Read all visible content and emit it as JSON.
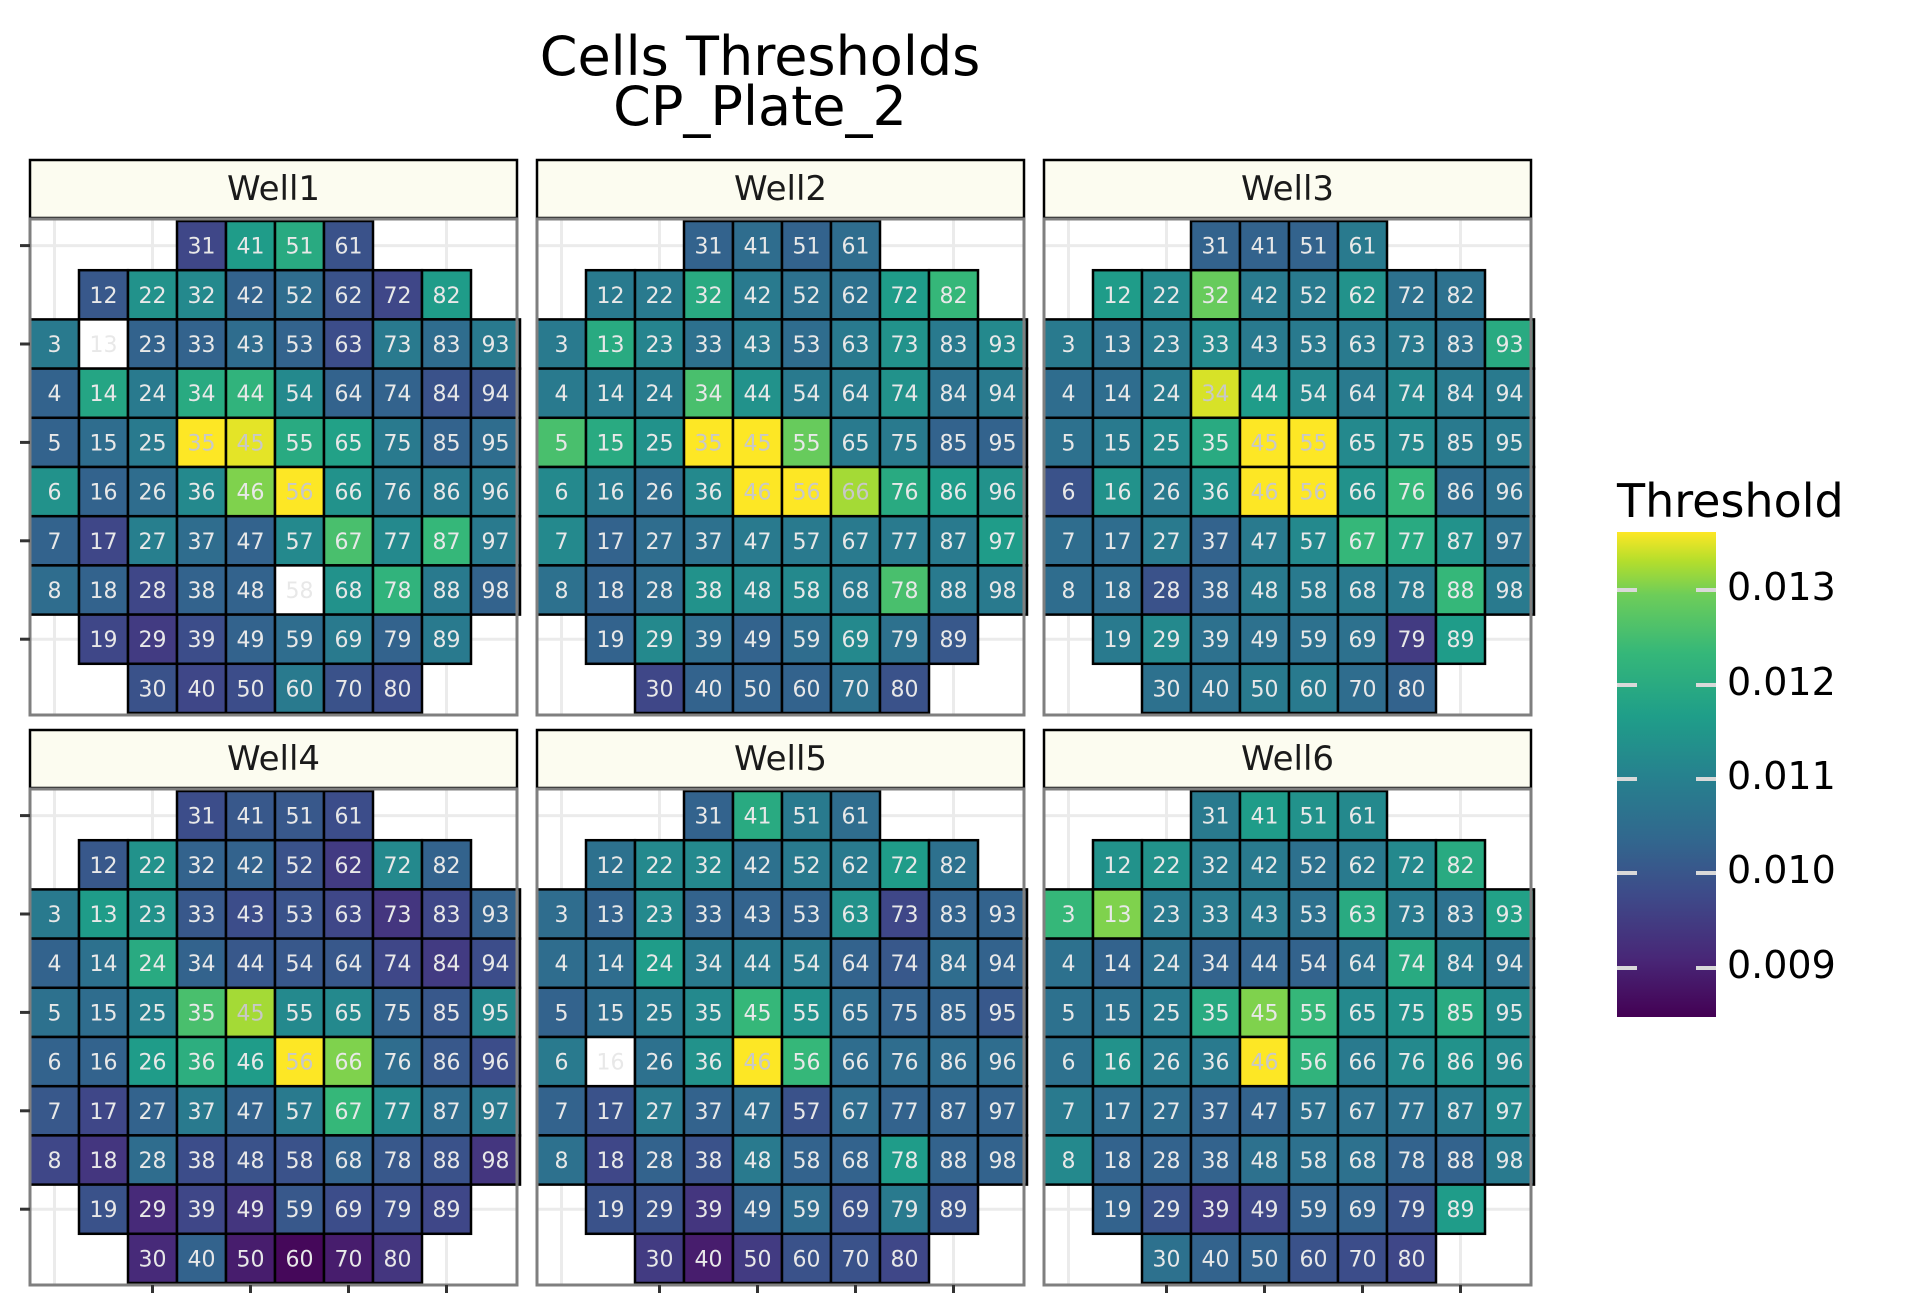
{
  "title_line1": "Cells Thresholds",
  "title_line2": "CP_Plate_2",
  "legend": {
    "title": "Threshold",
    "labels": [
      "0.013",
      "0.012",
      "0.011",
      "0.010",
      "0.009"
    ],
    "range": [
      0.0084,
      0.0135
    ]
  },
  "colors": {
    "strip_bg": "#fcfcf0",
    "missing": "#ffffff",
    "cell_border": "#000000",
    "grid": "#ebebeb",
    "panel_border": "#7f7f7f"
  },
  "chart_data": {
    "type": "heatmap",
    "title": "Cells Thresholds\nCP_Plate_2",
    "colorscale": "viridis",
    "legend_title": "Threshold",
    "legend_ticks": [
      0.009,
      0.01,
      0.011,
      0.012,
      0.013
    ],
    "row_layout": [
      [
        31,
        41,
        51,
        61
      ],
      [
        12,
        22,
        32,
        42,
        52,
        62,
        72,
        82
      ],
      [
        3,
        13,
        23,
        33,
        43,
        53,
        63,
        73,
        83,
        93
      ],
      [
        4,
        14,
        24,
        34,
        44,
        54,
        64,
        74,
        84,
        94
      ],
      [
        5,
        15,
        25,
        35,
        45,
        55,
        65,
        75,
        85,
        95
      ],
      [
        6,
        16,
        26,
        36,
        46,
        56,
        66,
        76,
        86,
        96
      ],
      [
        7,
        17,
        27,
        37,
        47,
        57,
        67,
        77,
        87,
        97
      ],
      [
        8,
        18,
        28,
        38,
        48,
        58,
        68,
        78,
        88,
        98
      ],
      [
        19,
        29,
        39,
        49,
        59,
        69,
        79,
        89
      ],
      [
        30,
        40,
        50,
        60,
        70,
        80
      ]
    ],
    "panels": [
      {
        "name": "Well1",
        "values": [
          [
            0.0095,
            0.0112,
            0.0115,
            0.0097
          ],
          [
            0.0098,
            0.011,
            0.0108,
            0.01,
            0.0102,
            0.0097,
            0.0095,
            0.0112
          ],
          [
            0.0105,
            null,
            0.01,
            0.01,
            0.0102,
            0.01,
            0.0096,
            0.0105,
            0.0102,
            0.0105
          ],
          [
            0.01,
            0.0114,
            0.0105,
            0.0115,
            0.0117,
            0.0108,
            0.01,
            0.01,
            0.0097,
            0.0097
          ],
          [
            0.01,
            0.0102,
            0.0105,
            0.0135,
            0.0133,
            0.0115,
            0.0113,
            0.0105,
            0.01,
            0.0102
          ],
          [
            0.011,
            0.01,
            0.0102,
            0.0108,
            0.0125,
            0.0135,
            0.011,
            0.0105,
            0.0105,
            0.0105
          ],
          [
            0.01,
            0.0095,
            0.0106,
            0.0102,
            0.01,
            0.0108,
            0.012,
            0.0108,
            0.0118,
            0.0105
          ],
          [
            0.0102,
            0.01,
            0.0095,
            0.01,
            0.01,
            null,
            0.011,
            0.0117,
            0.0105,
            0.01
          ],
          [
            0.0095,
            0.0093,
            0.0096,
            0.01,
            0.0102,
            0.0105,
            0.01,
            0.0105
          ],
          [
            0.0097,
            0.0095,
            0.0096,
            0.0105,
            0.0097,
            0.0096
          ]
        ]
      },
      {
        "name": "Well2",
        "values": [
          [
            0.01,
            0.0102,
            0.01,
            0.0102
          ],
          [
            0.0105,
            0.0105,
            0.0115,
            0.0105,
            0.0103,
            0.0103,
            0.0112,
            0.0118
          ],
          [
            0.0105,
            0.0115,
            0.0107,
            0.0103,
            0.0105,
            0.0102,
            0.0105,
            0.011,
            0.0105,
            0.0108
          ],
          [
            0.0105,
            0.0105,
            0.0105,
            0.012,
            0.011,
            0.0105,
            0.0105,
            0.011,
            0.0103,
            0.0105
          ],
          [
            0.012,
            0.0115,
            0.011,
            0.0135,
            0.0135,
            0.0123,
            0.0105,
            0.0105,
            0.01,
            0.01
          ],
          [
            0.0108,
            0.0105,
            0.0102,
            0.0108,
            0.0135,
            0.0135,
            0.0128,
            0.0115,
            0.0112,
            0.011
          ],
          [
            0.0108,
            0.01,
            0.0102,
            0.0103,
            0.0105,
            0.0105,
            0.0105,
            0.0105,
            0.0105,
            0.0112
          ],
          [
            0.0103,
            0.01,
            0.0102,
            0.011,
            0.0108,
            0.0108,
            0.0105,
            0.012,
            0.0105,
            0.0105
          ],
          [
            0.01,
            0.0108,
            0.0102,
            0.01,
            0.0102,
            0.0108,
            0.0103,
            0.0098
          ],
          [
            0.0095,
            0.01,
            0.01,
            0.01,
            0.0103,
            0.0097
          ]
        ]
      },
      {
        "name": "Well3",
        "values": [
          [
            0.01,
            0.01,
            0.01,
            0.0105
          ],
          [
            0.0112,
            0.0108,
            0.0123,
            0.0105,
            0.0105,
            0.011,
            0.0103,
            0.0103
          ],
          [
            0.0105,
            0.0103,
            0.0105,
            0.0108,
            0.0105,
            0.0105,
            0.0105,
            0.0105,
            0.0103,
            0.0115
          ],
          [
            0.0102,
            0.0102,
            0.0105,
            0.0132,
            0.0112,
            0.0108,
            0.0105,
            0.0108,
            0.0105,
            0.0105
          ],
          [
            0.0103,
            0.0105,
            0.0108,
            0.0115,
            0.0135,
            0.0135,
            0.0108,
            0.0108,
            0.0105,
            0.0105
          ],
          [
            0.0097,
            0.011,
            0.0105,
            0.011,
            0.0135,
            0.0135,
            0.011,
            0.0118,
            0.0102,
            0.0103
          ],
          [
            0.0102,
            0.0102,
            0.0105,
            0.01,
            0.0105,
            0.0108,
            0.0118,
            0.0115,
            0.011,
            0.0103
          ],
          [
            0.0102,
            0.0102,
            0.0097,
            0.01,
            0.0105,
            0.0105,
            0.0105,
            0.0105,
            0.0118,
            0.0105
          ],
          [
            0.0105,
            0.0108,
            0.0103,
            0.0103,
            0.0103,
            0.0103,
            0.0093,
            0.0112
          ],
          [
            0.0103,
            0.0103,
            0.0105,
            0.0105,
            0.0102,
            0.01
          ]
        ]
      },
      {
        "name": "Well4",
        "values": [
          [
            0.0096,
            0.0098,
            0.0098,
            0.0096
          ],
          [
            0.0098,
            0.011,
            0.01,
            0.01,
            0.0097,
            0.0093,
            0.0108,
            0.01
          ],
          [
            0.0105,
            0.0112,
            0.011,
            0.0098,
            0.0096,
            0.0097,
            0.0095,
            0.0092,
            0.0095,
            0.01
          ],
          [
            0.01,
            0.0103,
            0.0115,
            0.01,
            0.0098,
            0.0098,
            0.0098,
            0.0095,
            0.0093,
            0.0096
          ],
          [
            0.0103,
            0.0102,
            0.0106,
            0.012,
            0.0128,
            0.0108,
            0.0108,
            0.01,
            0.0098,
            0.0108
          ],
          [
            0.01,
            0.01,
            0.0112,
            0.0116,
            0.0112,
            0.0135,
            0.0125,
            0.0102,
            0.0098,
            0.0096
          ],
          [
            0.0098,
            0.0095,
            0.01,
            0.0105,
            0.01,
            0.0105,
            0.0118,
            0.0108,
            0.0102,
            0.0105
          ],
          [
            0.0095,
            0.0092,
            0.0102,
            0.0096,
            0.0097,
            0.0097,
            0.01,
            0.0098,
            0.0097,
            0.0092
          ],
          [
            0.0097,
            0.009,
            0.0095,
            0.0092,
            0.0098,
            0.0096,
            0.0096,
            0.0095
          ],
          [
            0.009,
            0.01,
            0.0088,
            0.0085,
            0.0088,
            0.0092
          ]
        ]
      },
      {
        "name": "Well5",
        "values": [
          [
            0.01,
            0.0115,
            0.0105,
            0.0102
          ],
          [
            0.0103,
            0.0108,
            0.0108,
            0.0103,
            0.0105,
            0.0105,
            0.0112,
            0.0103
          ],
          [
            0.0102,
            0.01,
            0.0108,
            0.01,
            0.01,
            0.01,
            0.011,
            0.0095,
            0.01,
            0.01
          ],
          [
            0.0102,
            0.0102,
            0.0112,
            0.0105,
            0.0105,
            0.0105,
            0.01,
            0.0098,
            0.0102,
            0.01
          ],
          [
            0.01,
            0.0102,
            0.0105,
            0.0108,
            0.0118,
            0.011,
            0.0102,
            0.01,
            0.01,
            0.0098
          ],
          [
            0.0105,
            null,
            0.0103,
            0.011,
            0.0135,
            0.0118,
            0.0102,
            0.0102,
            0.0102,
            0.0102
          ],
          [
            0.01,
            0.0097,
            0.0105,
            0.01,
            0.0102,
            0.0097,
            0.0102,
            0.01,
            0.01,
            0.01
          ],
          [
            0.0103,
            0.0095,
            0.01,
            0.0097,
            0.0105,
            0.01,
            0.01,
            0.0112,
            0.01,
            0.01
          ],
          [
            0.0097,
            0.0097,
            0.0092,
            0.01,
            0.0102,
            0.0097,
            0.0105,
            0.0097
          ],
          [
            0.0093,
            0.0088,
            0.0093,
            0.0097,
            0.0097,
            0.0095
          ]
        ]
      },
      {
        "name": "Well6",
        "values": [
          [
            0.0105,
            0.0112,
            0.011,
            0.0108
          ],
          [
            0.011,
            0.011,
            0.0105,
            0.0105,
            0.0103,
            0.0105,
            0.0108,
            0.0115
          ],
          [
            0.0118,
            0.0125,
            0.0105,
            0.0105,
            0.0105,
            0.0103,
            0.0115,
            0.0105,
            0.0103,
            0.0113
          ],
          [
            0.0103,
            0.01,
            0.0103,
            0.01,
            0.01,
            0.01,
            0.0103,
            0.0115,
            0.0105,
            0.0103
          ],
          [
            0.0103,
            0.0103,
            0.0105,
            0.0115,
            0.0125,
            0.0118,
            0.0108,
            0.011,
            0.0115,
            0.0108
          ],
          [
            0.0103,
            0.011,
            0.0105,
            0.0105,
            0.0135,
            0.0117,
            0.0105,
            0.0108,
            0.011,
            0.0108
          ],
          [
            0.0105,
            0.0102,
            0.0102,
            0.01,
            0.01,
            0.0103,
            0.0103,
            0.0103,
            0.0105,
            0.0108
          ],
          [
            0.0108,
            0.01,
            0.01,
            0.01,
            0.0103,
            0.0103,
            0.0103,
            0.01,
            0.01,
            0.0105
          ],
          [
            0.01,
            0.0097,
            0.0093,
            0.0095,
            0.01,
            0.01,
            0.0097,
            0.0112
          ],
          [
            0.0103,
            0.01,
            0.01,
            0.0097,
            0.0096,
            0.0095
          ]
        ]
      }
    ]
  }
}
